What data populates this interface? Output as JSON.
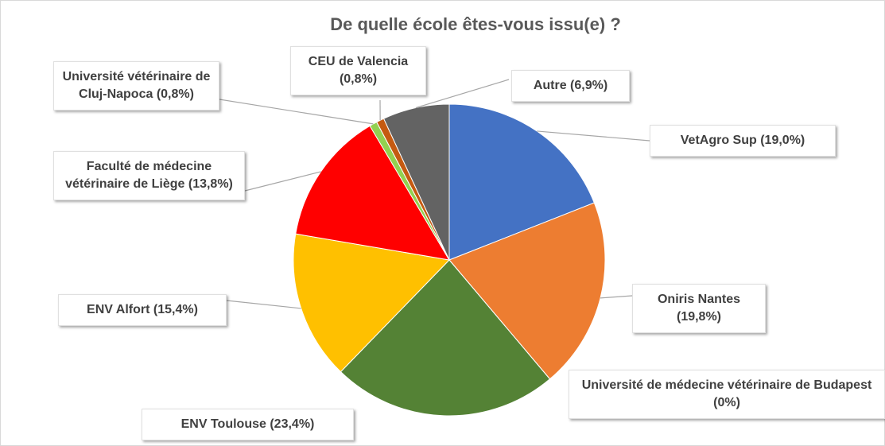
{
  "chart_data": {
    "type": "pie",
    "title": "De quelle école êtes-vous issu(e) ?",
    "categories": [
      "VetAgro Sup",
      "Oniris Nantes",
      "Université de médecine vétérinaire de Budapest",
      "ENV Toulouse",
      "ENV Alfort",
      "Faculté de médecine vétérinaire de Liège",
      "Université vétérinaire de Cluj-Napoca",
      "CEU de Valencia",
      "Autre"
    ],
    "values": [
      19.0,
      19.8,
      0,
      23.4,
      15.4,
      13.8,
      0.8,
      0.8,
      6.9
    ],
    "value_labels": [
      "(19,0%)",
      "(19,8%)",
      "(0%)",
      "(23,4%)",
      "(15,4%)",
      "(13,8%)",
      "(0,8%)",
      "(0,8%)",
      "(6,9%)"
    ],
    "colors": [
      "#4472c4",
      "#ed7d31",
      "#a5a5a5",
      "#548235",
      "#ffc000",
      "#ff0000",
      "#92d050",
      "#c55a11",
      "#636363"
    ]
  }
}
